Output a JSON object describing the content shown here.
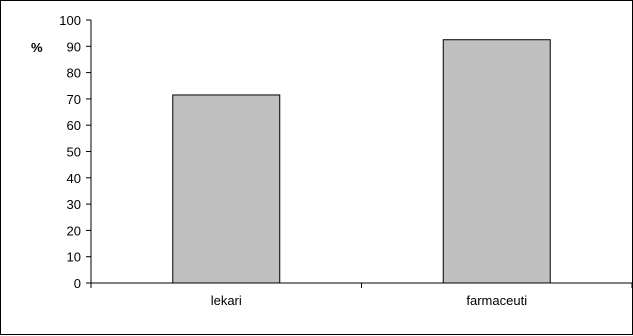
{
  "chart_data": {
    "type": "bar",
    "title": "",
    "xlabel": "",
    "ylabel": "%",
    "categories": [
      "lekari",
      "farmaceuti"
    ],
    "values": [
      71.5,
      92.5
    ],
    "ylim": [
      0,
      100
    ],
    "yticks": [
      0,
      10,
      20,
      30,
      40,
      50,
      60,
      70,
      80,
      90,
      100
    ],
    "grid": false,
    "legend": "none",
    "colors": {
      "bar_fill": "#c0c0c0",
      "bar_stroke": "#000000",
      "axis": "#000000"
    }
  }
}
